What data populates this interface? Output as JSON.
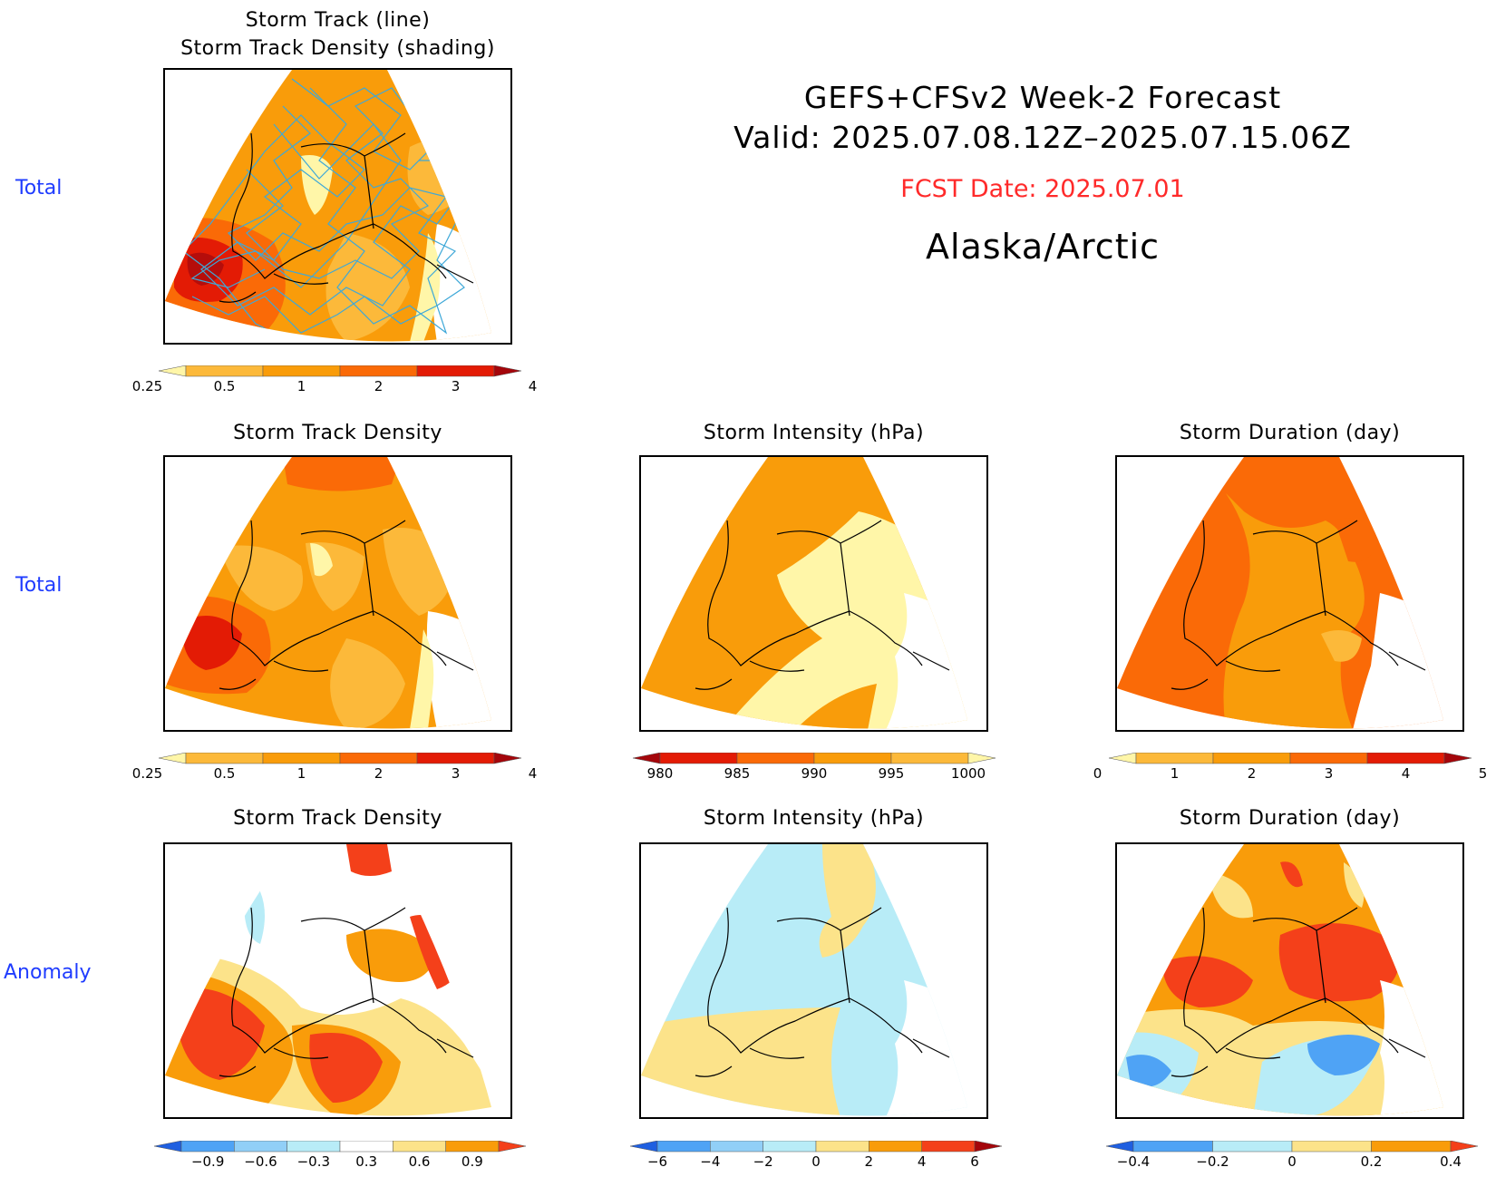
{
  "header": {
    "line1": "GEFS+CFSv2 Week-2 Forecast",
    "line2": "Valid: 2025.07.08.12Z–2025.07.15.06Z",
    "fcst": "FCST Date: 2025.07.01",
    "region": "Alaska/Arctic",
    "fcst_color": "#ff2a2a"
  },
  "rows": {
    "r1": "Total",
    "r2": "Total",
    "r3": "Anomaly"
  },
  "panels": {
    "p0": {
      "title1": "Storm Track (line)",
      "title2": "Storm Track Density (shading)"
    },
    "p1": {
      "title": "Storm Track Density"
    },
    "p2": {
      "title": "Storm Intensity (hPa)"
    },
    "p3": {
      "title": "Storm Duration (day)"
    },
    "p4": {
      "title": "Storm Track Density"
    },
    "p5": {
      "title": "Storm Intensity (hPa)"
    },
    "p6": {
      "title": "Storm Duration (day)"
    }
  },
  "colorbars": {
    "density": {
      "labels": [
        "0.25",
        "0.5",
        "1",
        "2",
        "3",
        "4"
      ],
      "colors": [
        "#fff6a8",
        "#fcb93a",
        "#f99c0a",
        "#fa6a07",
        "#e31b05",
        "#a4060b"
      ]
    },
    "intensity": {
      "labels": [
        "980",
        "985",
        "990",
        "995",
        "1000"
      ],
      "colors": [
        "#a4060b",
        "#e31b05",
        "#fa6a07",
        "#f99c0a",
        "#fcb93a",
        "#fff6a8"
      ]
    },
    "duration": {
      "labels": [
        "0",
        "1",
        "2",
        "3",
        "4",
        "5"
      ],
      "colors": [
        "#fff6a8",
        "#fcb93a",
        "#f99c0a",
        "#fa6a07",
        "#e31b05",
        "#a4060b"
      ]
    },
    "density_anom": {
      "labels": [
        "−0.9",
        "−0.6",
        "−0.3",
        "0.3",
        "0.6",
        "0.9"
      ],
      "colors": [
        "#1f5fe0",
        "#4fa3f5",
        "#91cff7",
        "#b8ecf7",
        "#ffffff",
        "#fce38a",
        "#f99c0a",
        "#f4401a"
      ]
    },
    "intensity_anom": {
      "labels": [
        "−6",
        "−4",
        "−2",
        "0",
        "2",
        "4",
        "6"
      ],
      "colors": [
        "#1f5fe0",
        "#4fa3f5",
        "#91cff7",
        "#b8ecf7",
        "#fce38a",
        "#f99c0a",
        "#f4401a",
        "#a4060b"
      ]
    },
    "duration_anom": {
      "labels": [
        "−0.4",
        "−0.2",
        "0",
        "0.2",
        "0.4"
      ],
      "colors": [
        "#1f5fe0",
        "#4fa3f5",
        "#b8ecf7",
        "#fce38a",
        "#f99c0a",
        "#f4401a"
      ]
    }
  },
  "map_colors": {
    "track_line": "#3ea8d8",
    "coast": "#000000"
  }
}
